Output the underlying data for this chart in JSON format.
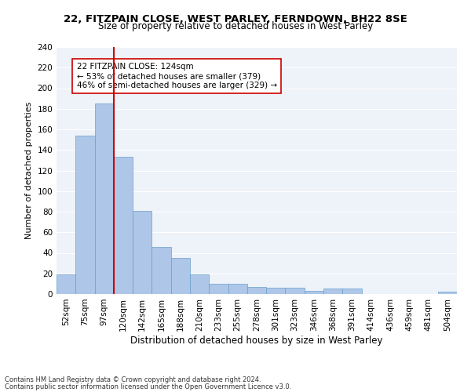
{
  "title1": "22, FITZPAIN CLOSE, WEST PARLEY, FERNDOWN, BH22 8SE",
  "title2": "Size of property relative to detached houses in West Parley",
  "xlabel": "Distribution of detached houses by size in West Parley",
  "ylabel": "Number of detached properties",
  "categories": [
    "52sqm",
    "75sqm",
    "97sqm",
    "120sqm",
    "142sqm",
    "165sqm",
    "188sqm",
    "210sqm",
    "233sqm",
    "255sqm",
    "278sqm",
    "301sqm",
    "323sqm",
    "346sqm",
    "368sqm",
    "391sqm",
    "414sqm",
    "436sqm",
    "459sqm",
    "481sqm",
    "504sqm"
  ],
  "values": [
    19,
    154,
    185,
    133,
    81,
    46,
    35,
    19,
    10,
    10,
    7,
    6,
    6,
    3,
    5,
    5,
    0,
    0,
    0,
    0,
    2
  ],
  "bar_color": "#aec6e8",
  "bar_edge_color": "#6a9fcb",
  "vline_color": "#cc0000",
  "annotation_text": "22 FITZPAIN CLOSE: 124sqm\n← 53% of detached houses are smaller (379)\n46% of semi-detached houses are larger (329) →",
  "annotation_box_color": "#ffffff",
  "annotation_box_edge": "#cc0000",
  "footer1": "Contains HM Land Registry data © Crown copyright and database right 2024.",
  "footer2": "Contains public sector information licensed under the Open Government Licence v3.0.",
  "bg_color": "#eef2f9",
  "ylim": [
    0,
    240
  ],
  "yticks": [
    0,
    20,
    40,
    60,
    80,
    100,
    120,
    140,
    160,
    180,
    200,
    220,
    240
  ],
  "title1_fontsize": 9.5,
  "title2_fontsize": 8.5,
  "xlabel_fontsize": 8.5,
  "ylabel_fontsize": 8.0,
  "tick_fontsize": 7.5,
  "footer_fontsize": 6.0
}
